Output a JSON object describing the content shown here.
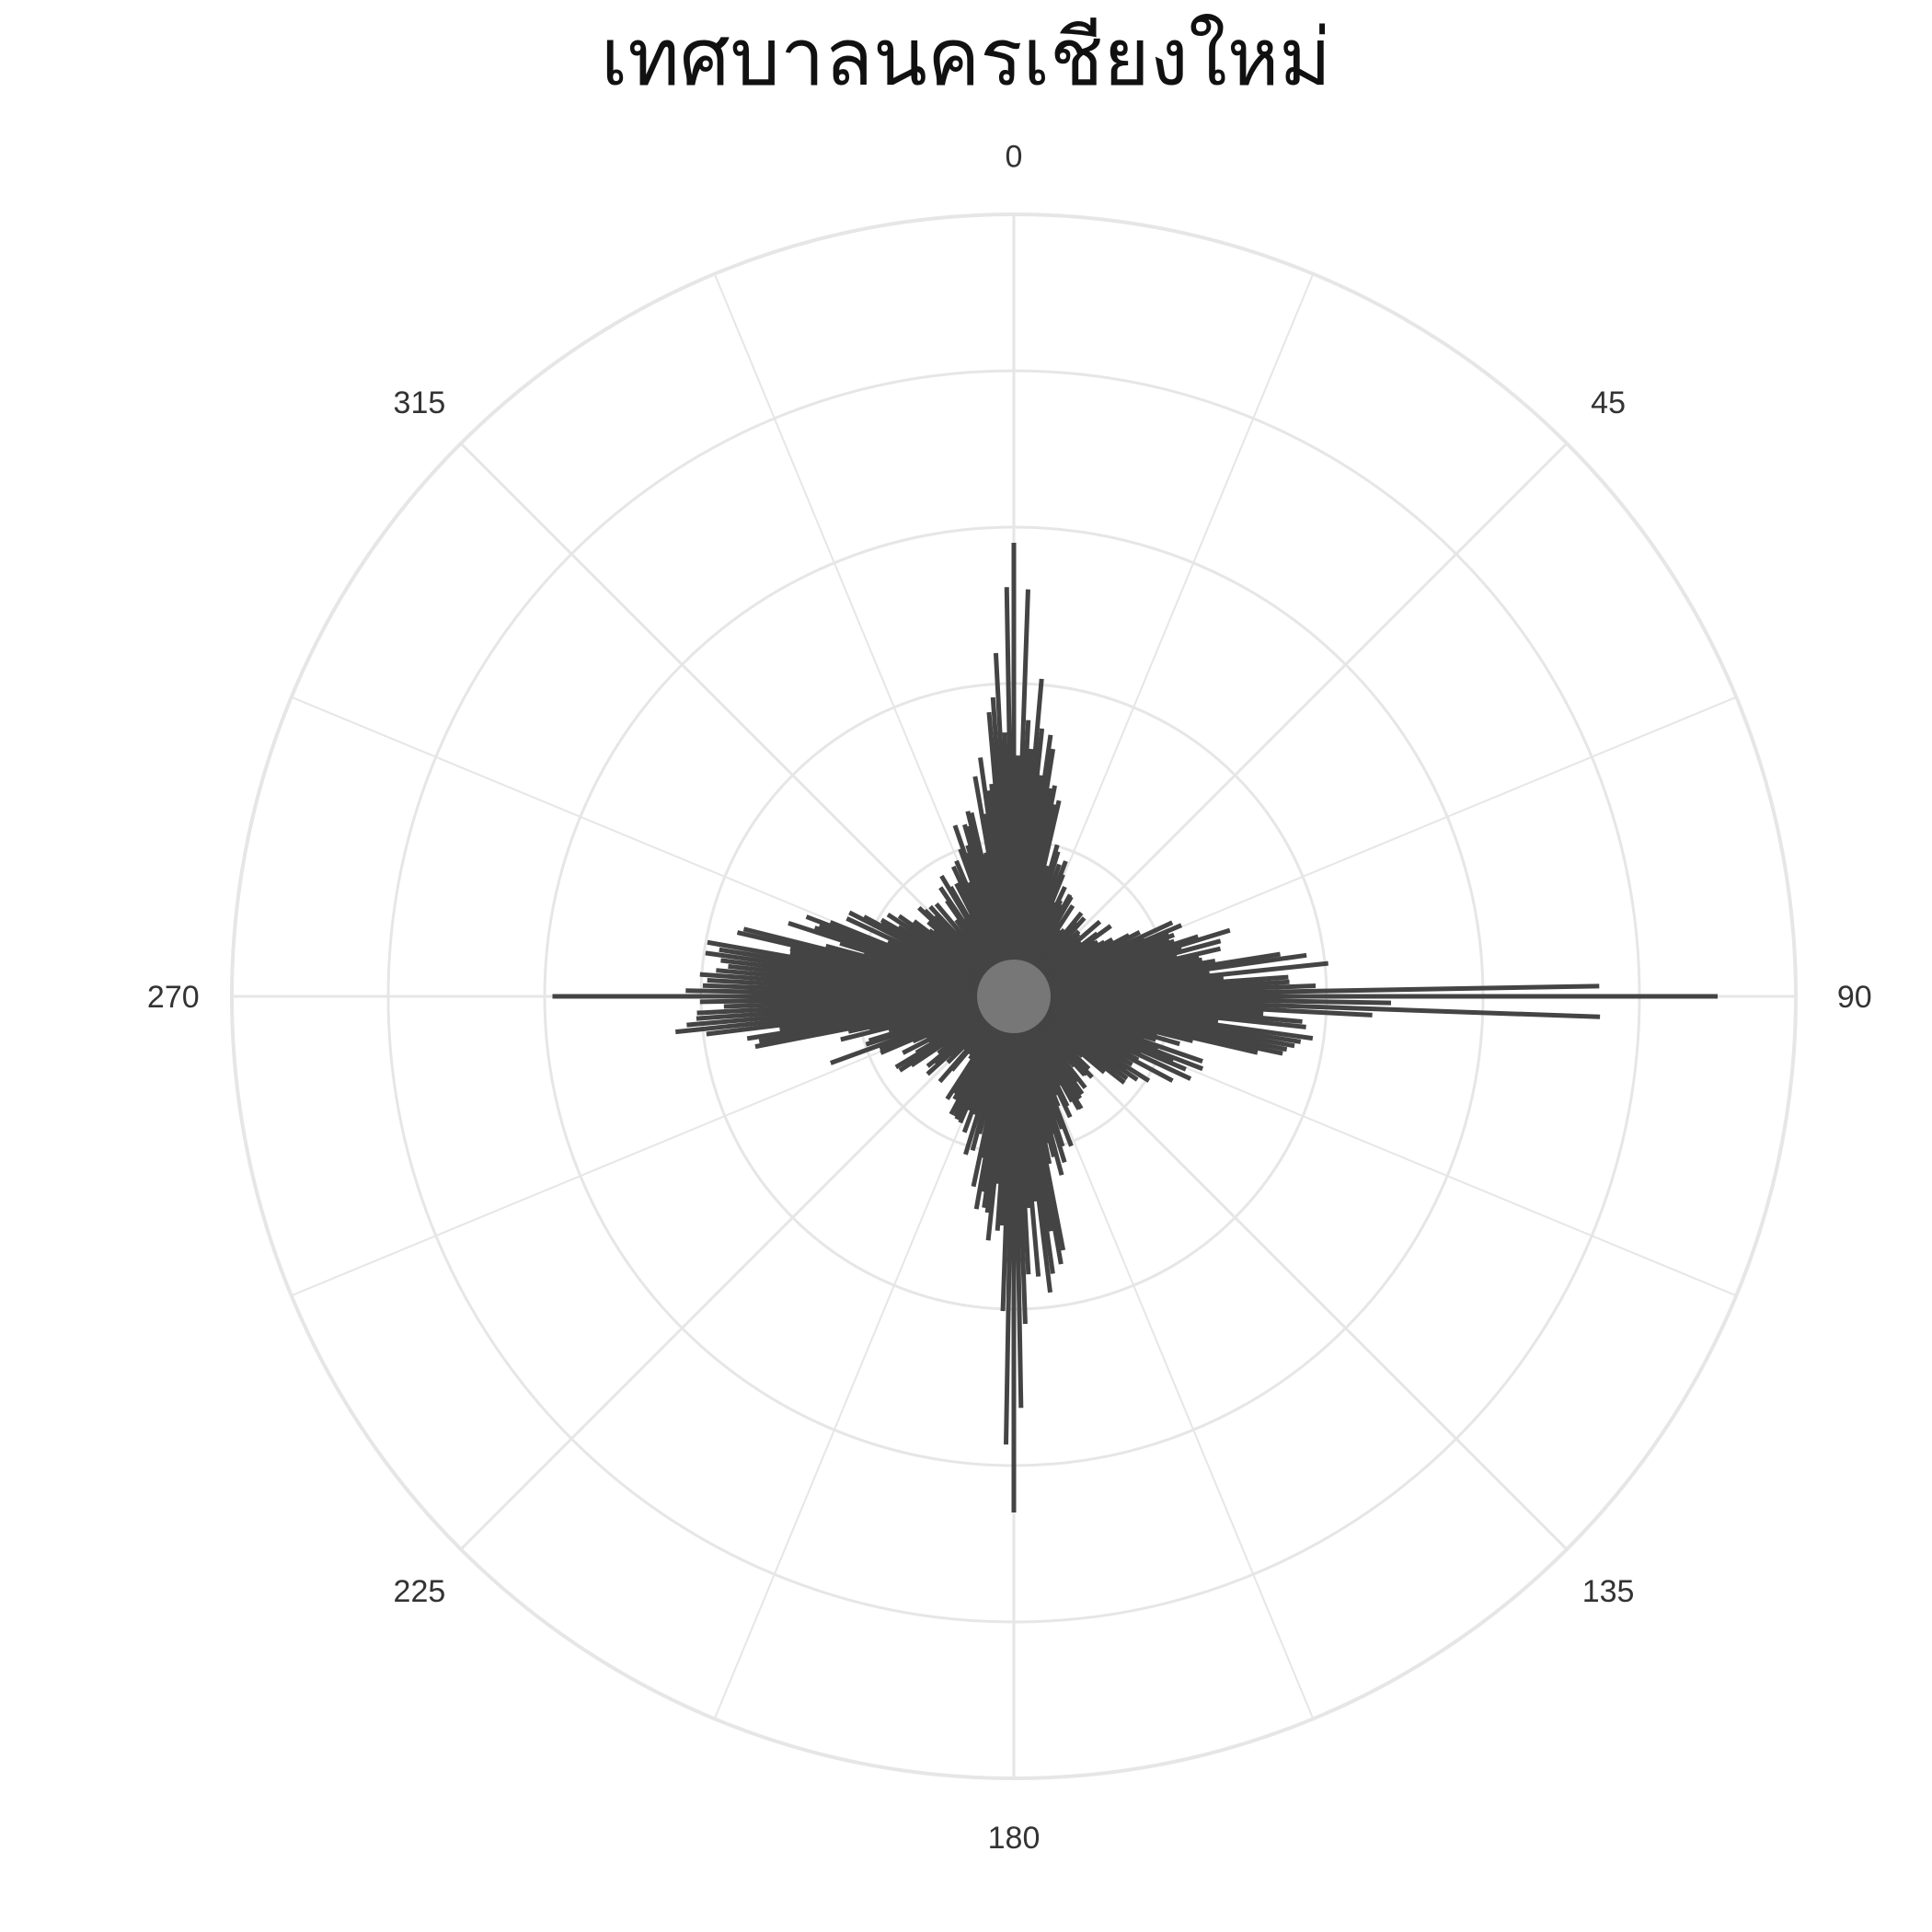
{
  "chart_data": {
    "type": "polar-bar",
    "title": "เทศบาลนครเชียงใหม่",
    "angular_axis": {
      "direction": "clockwise",
      "zero_at": "top",
      "unit": "degrees",
      "tick_labels": [
        "0",
        "45",
        "90",
        "135",
        "180",
        "225",
        "270",
        "315"
      ]
    },
    "radial_range": [
      0,
      1
    ],
    "grid": true,
    "legend": "none",
    "colors": {
      "bars": "#444444",
      "grid": "#e6e6e6",
      "text": "#333333"
    },
    "spike_anchors": [
      {
        "deg": 0,
        "r": 0.58
      },
      {
        "deg": 3,
        "r": 0.52
      },
      {
        "deg": 8,
        "r": 0.38
      },
      {
        "deg": 15,
        "r": 0.24
      },
      {
        "deg": 25,
        "r": 0.16
      },
      {
        "deg": 40,
        "r": 0.14
      },
      {
        "deg": 55,
        "r": 0.16
      },
      {
        "deg": 70,
        "r": 0.27
      },
      {
        "deg": 80,
        "r": 0.36
      },
      {
        "deg": 86,
        "r": 0.48
      },
      {
        "deg": 90,
        "r": 0.84
      },
      {
        "deg": 93,
        "r": 0.55
      },
      {
        "deg": 98,
        "r": 0.4
      },
      {
        "deg": 110,
        "r": 0.3
      },
      {
        "deg": 125,
        "r": 0.19
      },
      {
        "deg": 140,
        "r": 0.15
      },
      {
        "deg": 155,
        "r": 0.18
      },
      {
        "deg": 165,
        "r": 0.27
      },
      {
        "deg": 172,
        "r": 0.38
      },
      {
        "deg": 177,
        "r": 0.46
      },
      {
        "deg": 180,
        "r": 0.65
      },
      {
        "deg": 184,
        "r": 0.4
      },
      {
        "deg": 192,
        "r": 0.28
      },
      {
        "deg": 205,
        "r": 0.18
      },
      {
        "deg": 225,
        "r": 0.14
      },
      {
        "deg": 245,
        "r": 0.2
      },
      {
        "deg": 258,
        "r": 0.33
      },
      {
        "deg": 266,
        "r": 0.48
      },
      {
        "deg": 270,
        "r": 0.57
      },
      {
        "deg": 274,
        "r": 0.46
      },
      {
        "deg": 282,
        "r": 0.38
      },
      {
        "deg": 292,
        "r": 0.28
      },
      {
        "deg": 305,
        "r": 0.19
      },
      {
        "deg": 320,
        "r": 0.16
      },
      {
        "deg": 335,
        "r": 0.2
      },
      {
        "deg": 345,
        "r": 0.26
      },
      {
        "deg": 352,
        "r": 0.38
      },
      {
        "deg": 357,
        "r": 0.48
      },
      {
        "deg": 360,
        "r": 0.58
      }
    ],
    "notable_bars": [
      {
        "deg": 0,
        "r": 0.58
      },
      {
        "deg": 90,
        "r": 0.9
      },
      {
        "deg": 92,
        "r": 0.75
      },
      {
        "deg": 180,
        "r": 0.66
      },
      {
        "deg": 270,
        "r": 0.59
      }
    ]
  }
}
